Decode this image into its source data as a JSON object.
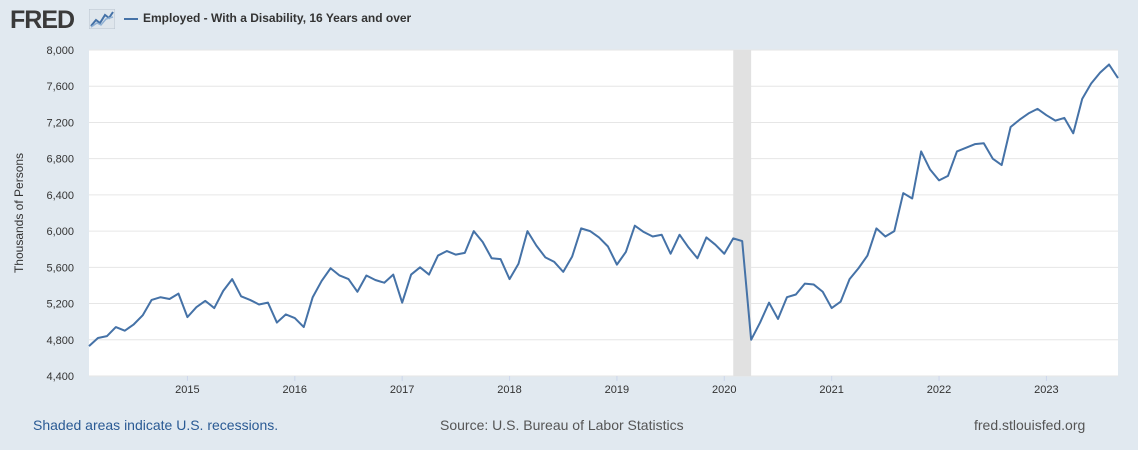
{
  "brand": {
    "logo_text": "FRED",
    "logo_icon": "chart-line-icon"
  },
  "footer": {
    "recession_note": "Shaded areas indicate U.S. recessions.",
    "source": "Source: U.S. Bureau of Labor Statistics",
    "site": "fred.stlouisfed.org"
  },
  "colors": {
    "series": "#4572a7",
    "recession": "#e1e1e1",
    "background": "#e1e9f0"
  },
  "chart_data": {
    "type": "line",
    "title": "",
    "legend": "Employed - With a Disability, 16 Years and over",
    "ylabel": "Thousands of Persons",
    "xlabel": "",
    "ylim": [
      4400,
      8000
    ],
    "yticks": [
      4400,
      4800,
      5200,
      5600,
      6000,
      6400,
      6800,
      7200,
      7600,
      8000
    ],
    "ytick_labels": [
      "4,400",
      "4,800",
      "5,200",
      "5,600",
      "6,000",
      "6,400",
      "6,800",
      "7,200",
      "7,600",
      "8,000"
    ],
    "xticks": [
      "2015",
      "2016",
      "2017",
      "2018",
      "2019",
      "2020",
      "2021",
      "2022",
      "2023"
    ],
    "x_start": "2014-02",
    "recession": {
      "start": "2020-02",
      "end": "2020-04"
    },
    "series": [
      {
        "name": "Employed - With a Disability, 16 Years and over",
        "frequency": "monthly",
        "values": [
          4730,
          4820,
          4840,
          4940,
          4900,
          4970,
          5070,
          5240,
          5270,
          5250,
          5310,
          5050,
          5160,
          5230,
          5150,
          5340,
          5470,
          5280,
          5240,
          5190,
          5210,
          4990,
          5080,
          5040,
          4940,
          5270,
          5450,
          5590,
          5510,
          5470,
          5330,
          5510,
          5460,
          5430,
          5520,
          5210,
          5520,
          5600,
          5520,
          5730,
          5780,
          5740,
          5760,
          6000,
          5880,
          5700,
          5690,
          5470,
          5640,
          6000,
          5840,
          5710,
          5660,
          5550,
          5720,
          6030,
          6000,
          5930,
          5830,
          5630,
          5770,
          6060,
          5990,
          5940,
          5960,
          5750,
          5960,
          5820,
          5700,
          5930,
          5850,
          5750,
          5920,
          5890,
          4800,
          4990,
          5210,
          5030,
          5270,
          5300,
          5420,
          5410,
          5330,
          5150,
          5220,
          5470,
          5590,
          5730,
          6030,
          5940,
          6000,
          6420,
          6360,
          6880,
          6680,
          6560,
          6610,
          6880,
          6920,
          6960,
          6970,
          6800,
          6730,
          7150,
          7230,
          7300,
          7350,
          7280,
          7220,
          7250,
          7080,
          7460,
          7630,
          7750,
          7840,
          7690
        ]
      }
    ]
  }
}
